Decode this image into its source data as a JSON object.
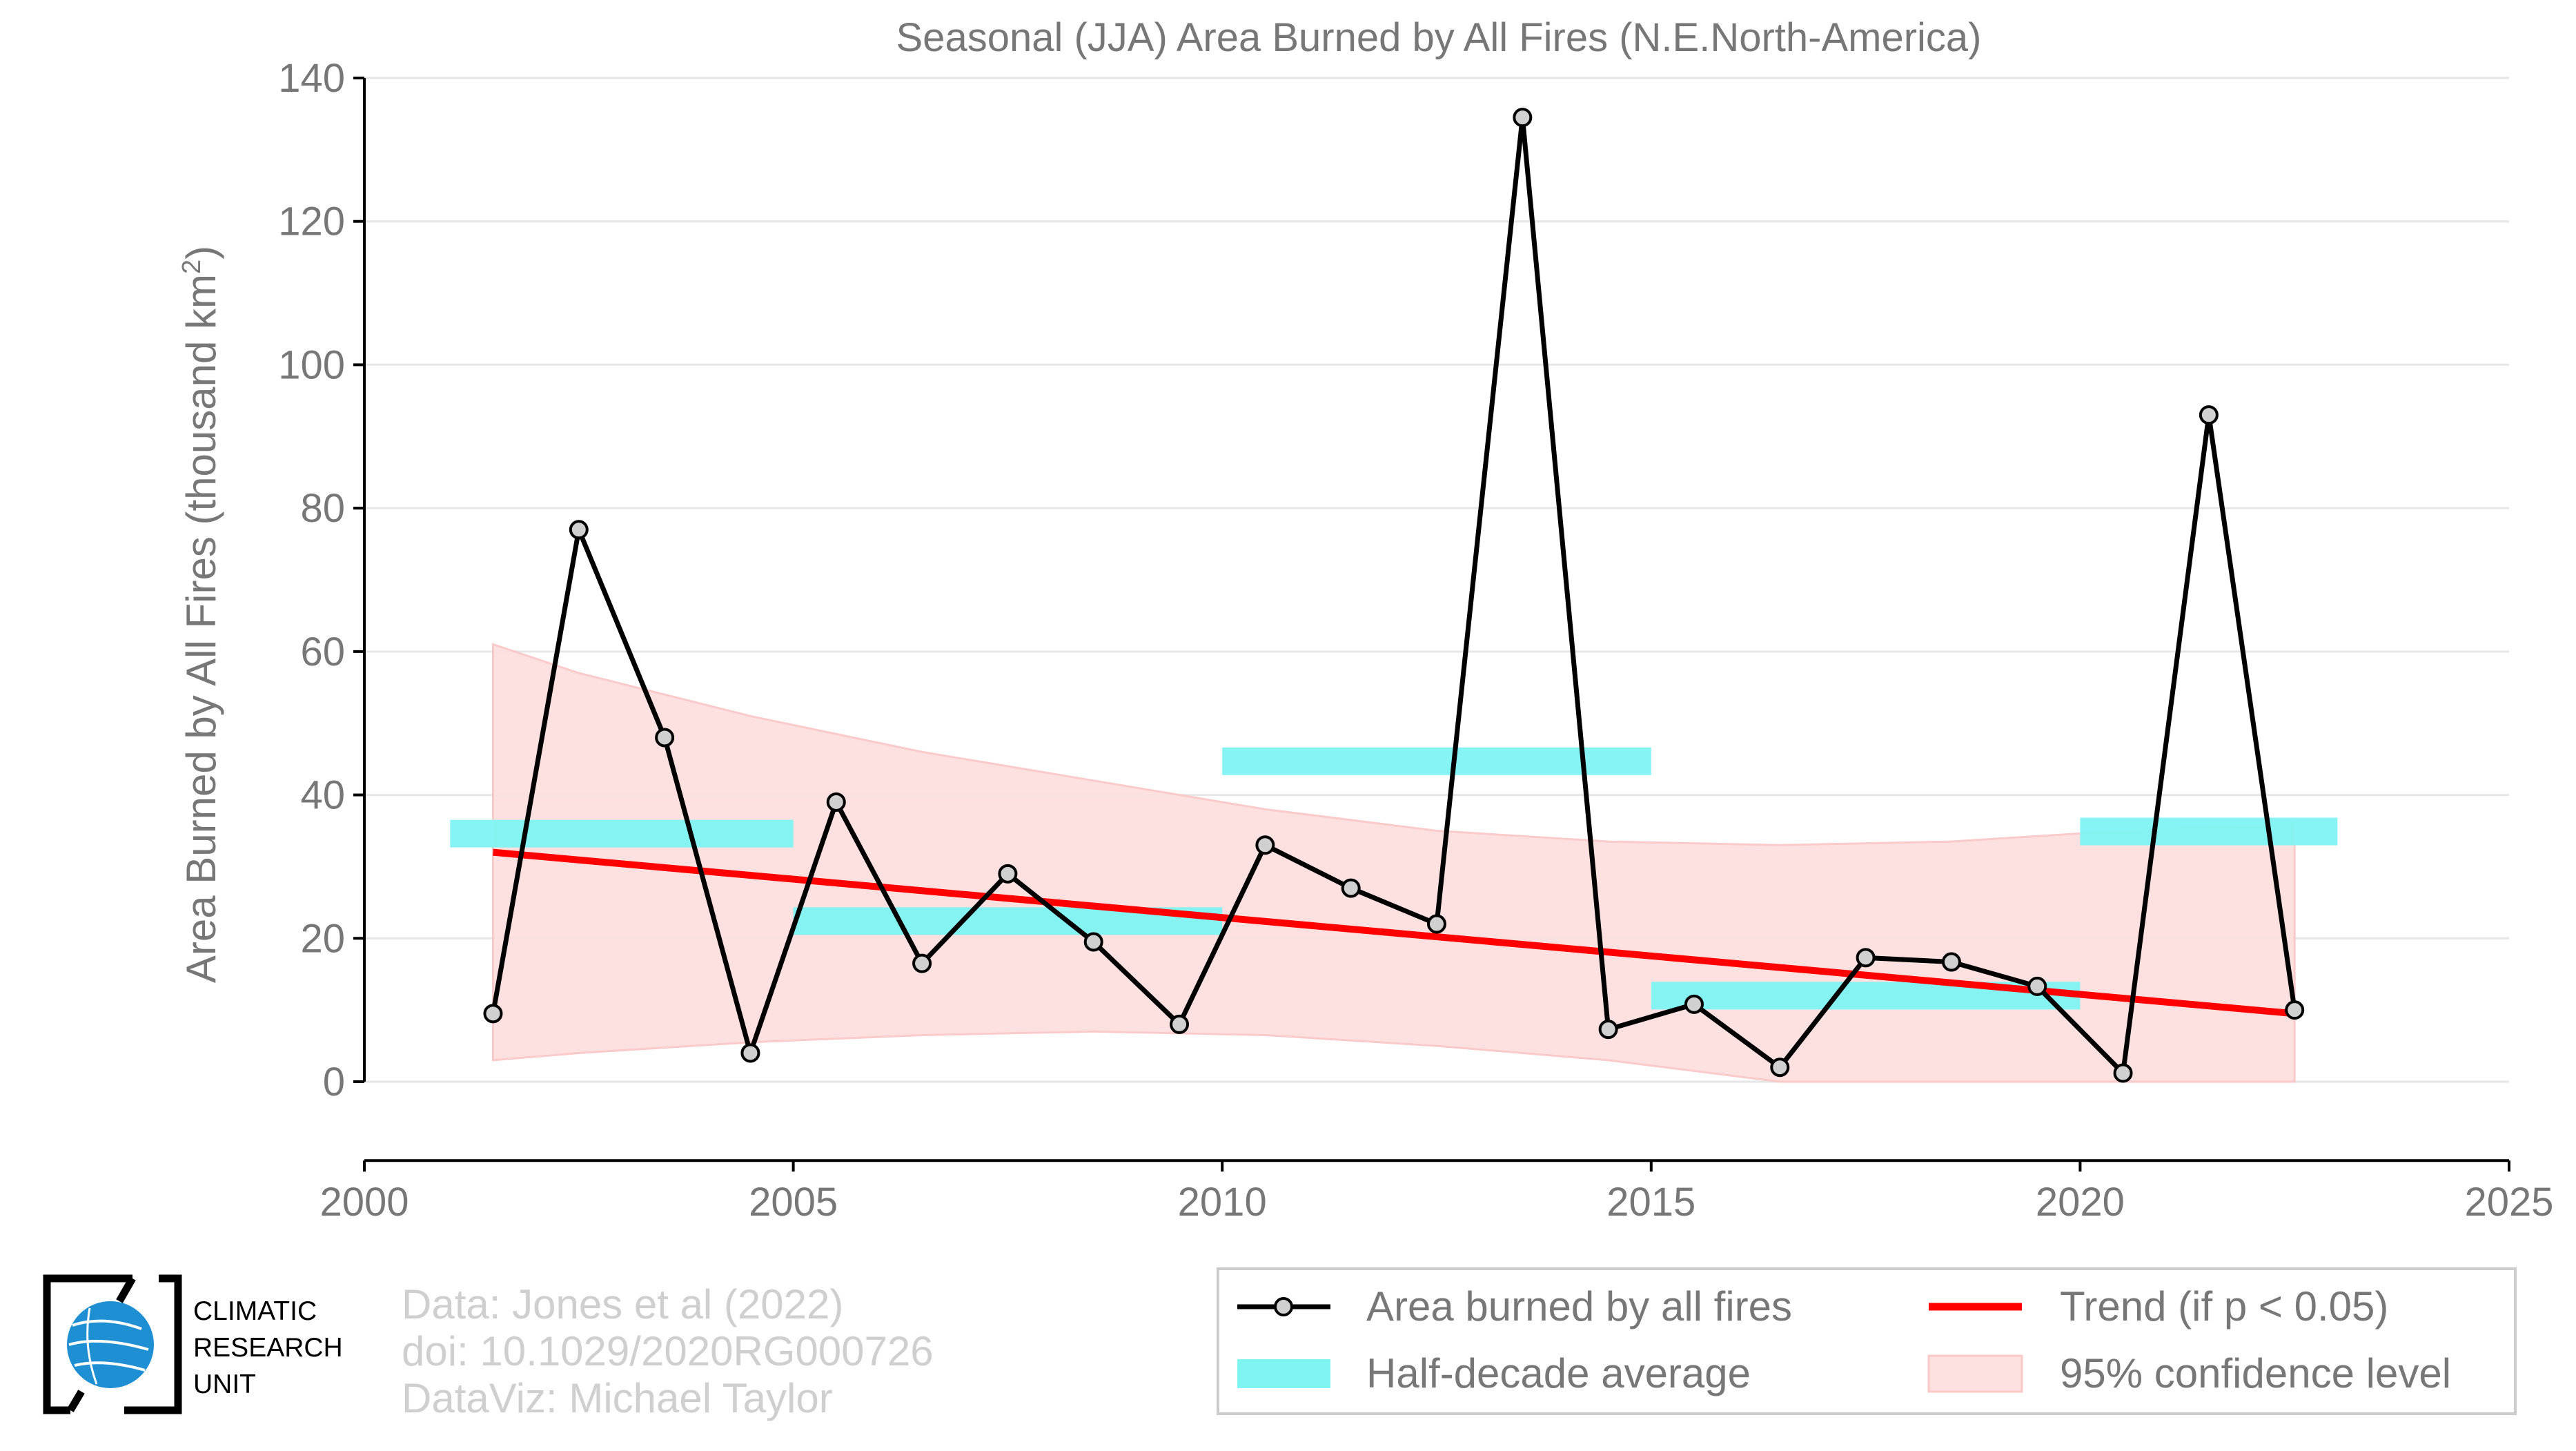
{
  "chart_data": {
    "type": "line",
    "title": "Seasonal (JJA) Area Burned by All Fires (N.E.North-America)",
    "ylabel": "Area Burned by All Fires (thousand km",
    "ylabel_sup": "2",
    "ylabel_close": ")",
    "xlabel": "",
    "xlim": [
      2000,
      2025
    ],
    "ylim": [
      -11,
      140
    ],
    "x_ticks": [
      "2000",
      "2005",
      "2010",
      "2015",
      "2020",
      "2025"
    ],
    "y_ticks": [
      "0",
      "20",
      "40",
      "60",
      "80",
      "100",
      "120",
      "140"
    ],
    "grid": true,
    "legend_position": "bottom-right",
    "series": [
      {
        "name": "Area burned by all fires",
        "kind": "line-markers",
        "color": "#000000",
        "marker_fill": "#d0d0d0",
        "x": [
          2001.5,
          2002.5,
          2003.5,
          2004.5,
          2005.5,
          2006.5,
          2007.5,
          2008.5,
          2009.5,
          2010.5,
          2011.5,
          2012.5,
          2013.5,
          2014.5,
          2015.5,
          2016.5,
          2017.5,
          2018.5,
          2019.5,
          2020.5,
          2021.5,
          2022.5
        ],
        "values": [
          9.5,
          77,
          48,
          4,
          39,
          16.5,
          29,
          19.5,
          8,
          33,
          27,
          22,
          134.5,
          7.3,
          10.8,
          2,
          17.3,
          16.7,
          13.3,
          1.2,
          93,
          10
        ]
      },
      {
        "name": "Half-decade average",
        "kind": "segments",
        "color": "#80f3f3",
        "segments": [
          {
            "x_start": 2001,
            "x_end": 2005,
            "value": 34.6
          },
          {
            "x_start": 2005,
            "x_end": 2010,
            "value": 22.4
          },
          {
            "x_start": 2010,
            "x_end": 2015,
            "value": 44.7
          },
          {
            "x_start": 2015,
            "x_end": 2020,
            "value": 12
          },
          {
            "x_start": 2020,
            "x_end": 2023,
            "value": 34.9
          }
        ]
      },
      {
        "name": "Trend (if p < 0.05)",
        "kind": "line",
        "color": "#ff0000",
        "x": [
          2001.5,
          2022.5
        ],
        "values": [
          32,
          9.5
        ]
      },
      {
        "name": "95% confidence level",
        "kind": "band",
        "color": "#fde0e0",
        "x": [
          2001.5,
          2002.5,
          2004.5,
          2006.5,
          2008.5,
          2010.5,
          2012.5,
          2014.5,
          2016.5,
          2018.5,
          2020.5,
          2022.5
        ],
        "upper": [
          61,
          57,
          51,
          46,
          42,
          38,
          35,
          33.5,
          33,
          33.5,
          35,
          36
        ],
        "lower": [
          3,
          4,
          5.5,
          6.5,
          7,
          6.5,
          5,
          3,
          0,
          0,
          0,
          0
        ]
      }
    ]
  },
  "legend": {
    "items": [
      {
        "label": "Area burned by all fires",
        "symbol": "line-marker"
      },
      {
        "label": "Trend (if p < 0.05)",
        "symbol": "red-line"
      },
      {
        "label": "Half-decade average",
        "symbol": "cyan-bar"
      },
      {
        "label": "95% confidence level",
        "symbol": "pink-patch"
      }
    ]
  },
  "credits": {
    "line1": "Data: Jones et al (2022)",
    "line2": "doi: 10.1029/2020RG000726",
    "line3": "DataViz: Michael Taylor"
  },
  "logo": {
    "line1": "CLIMATIC",
    "line2": "RESEARCH",
    "line3": "UNIT",
    "icon": "globe-icon",
    "accent_color": "#1e8fd2"
  }
}
